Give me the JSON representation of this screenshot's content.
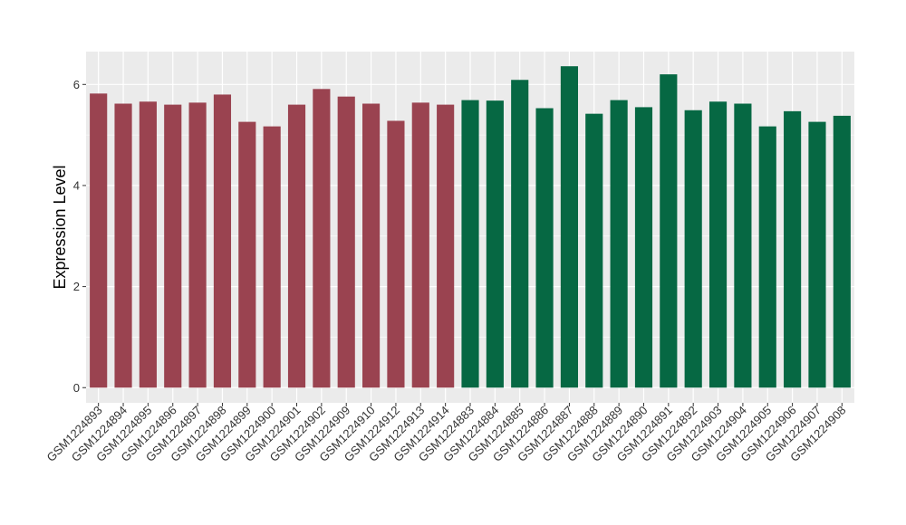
{
  "chart_data": {
    "type": "bar",
    "title": "",
    "xlabel": "",
    "ylabel": "Expression Level",
    "ylim": [
      -0.3,
      6.65
    ],
    "yticks": [
      0,
      2,
      4,
      6
    ],
    "grid": true,
    "legend": "none",
    "panel_background": "#ebebeb",
    "grid_color": "#ffffff",
    "categories": [
      "GSM1224893",
      "GSM1224894",
      "GSM1224895",
      "GSM1224896",
      "GSM1224897",
      "GSM1224898",
      "GSM1224899",
      "GSM1224900",
      "GSM1224901",
      "GSM1224902",
      "GSM1224909",
      "GSM1224910",
      "GSM1224912",
      "GSM1224913",
      "GSM1224914",
      "GSM1224883",
      "GSM1224884",
      "GSM1224885",
      "GSM1224886",
      "GSM1224887",
      "GSM1224888",
      "GSM1224889",
      "GSM1224890",
      "GSM1224891",
      "GSM1224892",
      "GSM1224903",
      "GSM1224904",
      "GSM1224905",
      "GSM1224906",
      "GSM1224907",
      "GSM1224908"
    ],
    "values": [
      5.82,
      5.62,
      5.66,
      5.6,
      5.64,
      5.8,
      5.26,
      5.17,
      5.6,
      5.91,
      5.76,
      5.62,
      5.28,
      5.64,
      5.6,
      5.69,
      5.68,
      6.09,
      5.53,
      6.36,
      5.42,
      5.69,
      5.55,
      6.2,
      5.49,
      5.66,
      5.62,
      5.17,
      5.47,
      5.26,
      5.38
    ],
    "bar_colors": [
      "#9a4350",
      "#9a4350",
      "#9a4350",
      "#9a4350",
      "#9a4350",
      "#9a4350",
      "#9a4350",
      "#9a4350",
      "#9a4350",
      "#9a4350",
      "#9a4350",
      "#9a4350",
      "#9a4350",
      "#9a4350",
      "#9a4350",
      "#066843",
      "#066843",
      "#066843",
      "#066843",
      "#066843",
      "#066843",
      "#066843",
      "#066843",
      "#066843",
      "#066843",
      "#066843",
      "#066843",
      "#066843",
      "#066843",
      "#066843",
      "#066843"
    ]
  }
}
